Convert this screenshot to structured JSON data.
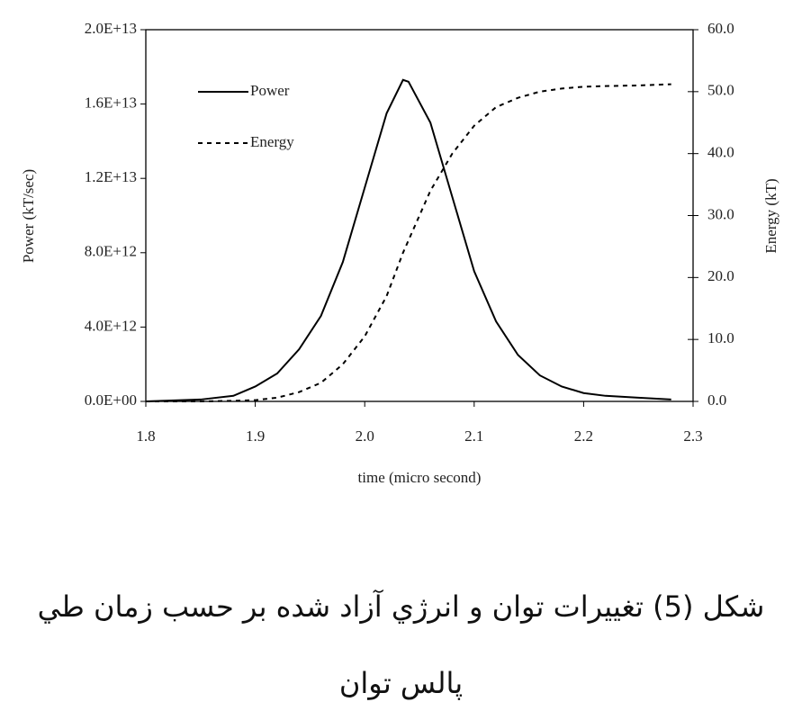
{
  "chart_data": {
    "type": "line",
    "x_label": "time (micro second)",
    "y_label": "Power (kT/sec)",
    "y2_label": "Energy (kT)",
    "x": [
      1.8,
      1.85,
      1.88,
      1.9,
      1.92,
      1.94,
      1.96,
      1.98,
      2.0,
      2.02,
      2.035,
      2.04,
      2.06,
      2.08,
      2.1,
      2.12,
      2.14,
      2.16,
      2.18,
      2.2,
      2.22,
      2.25,
      2.28
    ],
    "series": [
      {
        "name": "Power",
        "color": "#000000",
        "line_style": "solid",
        "values": [
          0,
          100000000000,
          300000000000,
          800000000000,
          1500000000000,
          2800000000000,
          4600000000000,
          7500000000000,
          11500000000000,
          15500000000000,
          17300000000000,
          17200000000000,
          15000000000000,
          11000000000000,
          7000000000000,
          4300000000000,
          2500000000000,
          1400000000000,
          800000000000,
          450000000000,
          300000000000,
          200000000000,
          100000000000
        ]
      },
      {
        "name": "Energy",
        "color": "#000000",
        "line_style": "dashed",
        "axis": "y2",
        "values": [
          0,
          0,
          0.1,
          0.2,
          0.6,
          1.5,
          3,
          6,
          10.5,
          17,
          24,
          26,
          34,
          40,
          44.5,
          47.5,
          49,
          50,
          50.5,
          50.8,
          50.9,
          51,
          51.2
        ]
      }
    ],
    "xlim": [
      1.8,
      2.3
    ],
    "xticks": [
      1.8,
      1.9,
      {
        "value": 2,
        "label": "2.0"
      },
      2.1,
      2.2,
      2.3
    ],
    "ylim": [
      0,
      20000000000000
    ],
    "yticks": [
      {
        "value": 0,
        "label": "0.0E+00"
      },
      {
        "value": 4000000000000,
        "label": "4.0E+12"
      },
      {
        "value": 8000000000000,
        "label": "8.0E+12"
      },
      {
        "value": 12000000000000,
        "label": "1.2E+13"
      },
      {
        "value": 16000000000000,
        "label": "1.6E+13"
      },
      {
        "value": 20000000000000,
        "label": "2.0E+13"
      }
    ],
    "y2lim": [
      0,
      60
    ],
    "y2ticks": [
      {
        "value": 0,
        "label": "0.0"
      },
      {
        "value": 10,
        "label": "10.0"
      },
      {
        "value": 20,
        "label": "20.0"
      },
      {
        "value": 30,
        "label": "30.0"
      },
      {
        "value": 40,
        "label": "40.0"
      },
      {
        "value": 50,
        "label": "50.0"
      },
      {
        "value": 60,
        "label": "60.0"
      }
    ],
    "legend": "upper left",
    "grid": false
  },
  "caption": [
    "شكل (5) تغييرات توان و انرژي آزاد شده بر حسب زمان طي",
    "پالس توان"
  ]
}
